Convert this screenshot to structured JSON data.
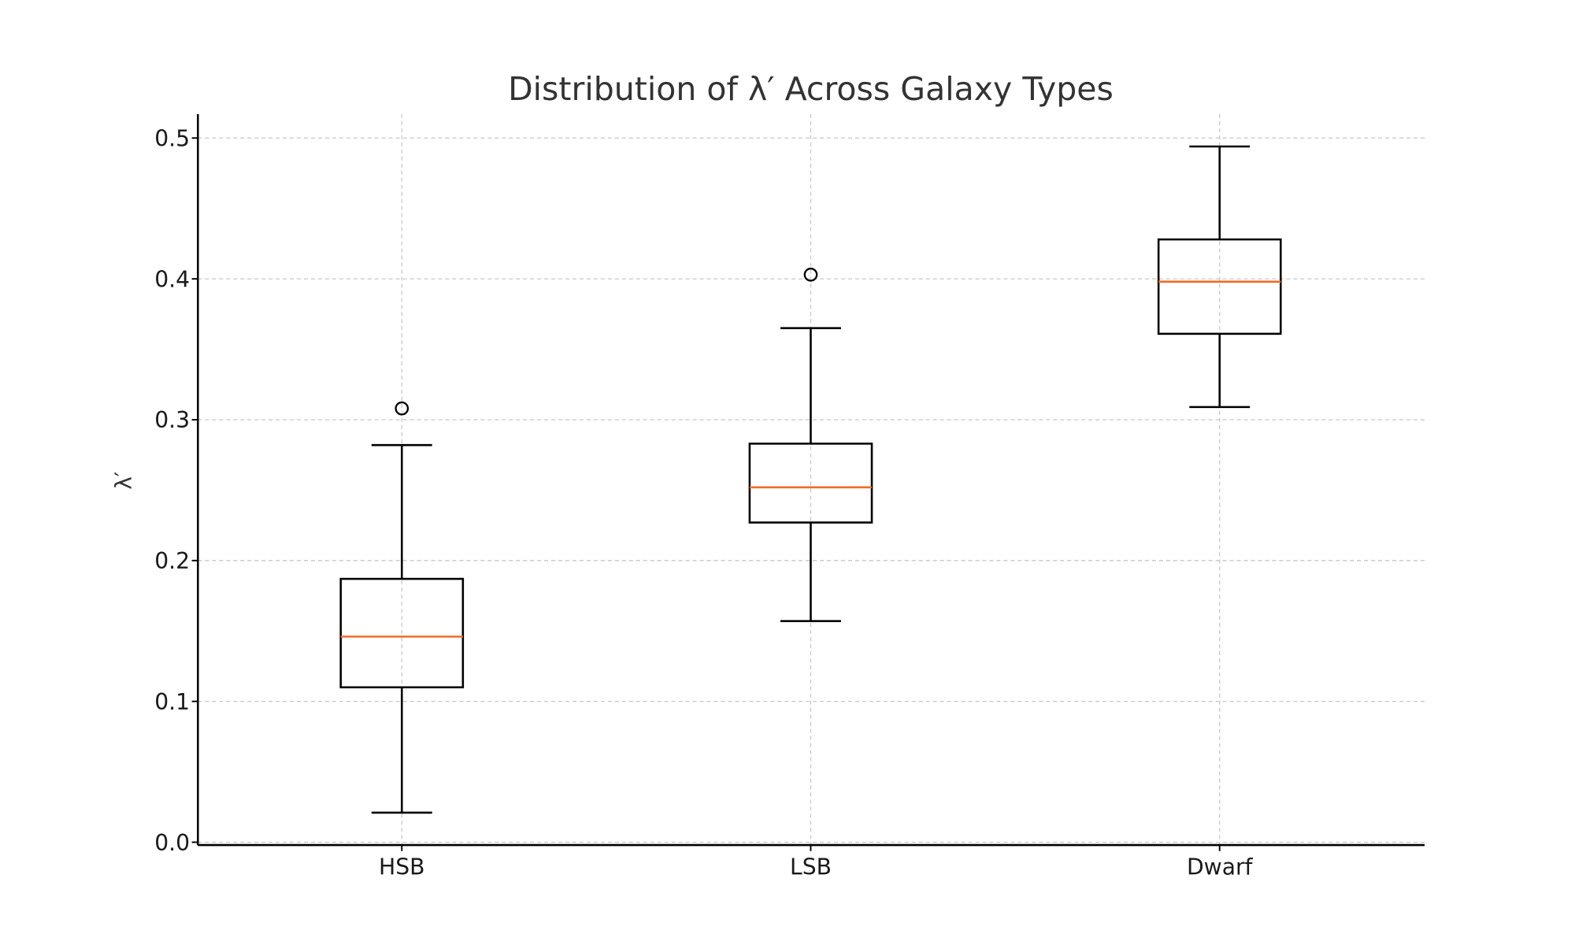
{
  "chart_data": {
    "type": "box",
    "title": "Distribution of λ′ Across Galaxy Types",
    "xlabel": "",
    "ylabel": "λ′",
    "categories": [
      "HSB",
      "LSB",
      "Dwarf"
    ],
    "ylim": [
      -0.002,
      0.517
    ],
    "yticks": [
      0.0,
      0.1,
      0.2,
      0.3,
      0.4,
      0.5
    ],
    "ytick_labels": [
      "0.0",
      "0.1",
      "0.2",
      "0.3",
      "0.4",
      "0.5"
    ],
    "grid": true,
    "median_color": "#f26b2a",
    "box_color": "#000000",
    "grid_color": "#c8c8c8",
    "boxes": [
      {
        "name": "HSB",
        "whisker_low": 0.021,
        "q1": 0.11,
        "median": 0.146,
        "q3": 0.187,
        "whisker_high": 0.282,
        "outliers": [
          0.308
        ]
      },
      {
        "name": "LSB",
        "whisker_low": 0.157,
        "q1": 0.227,
        "median": 0.252,
        "q3": 0.283,
        "whisker_high": 0.365,
        "outliers": [
          0.403
        ]
      },
      {
        "name": "Dwarf",
        "whisker_low": 0.309,
        "q1": 0.361,
        "median": 0.398,
        "q3": 0.428,
        "whisker_high": 0.494,
        "outliers": []
      }
    ]
  }
}
